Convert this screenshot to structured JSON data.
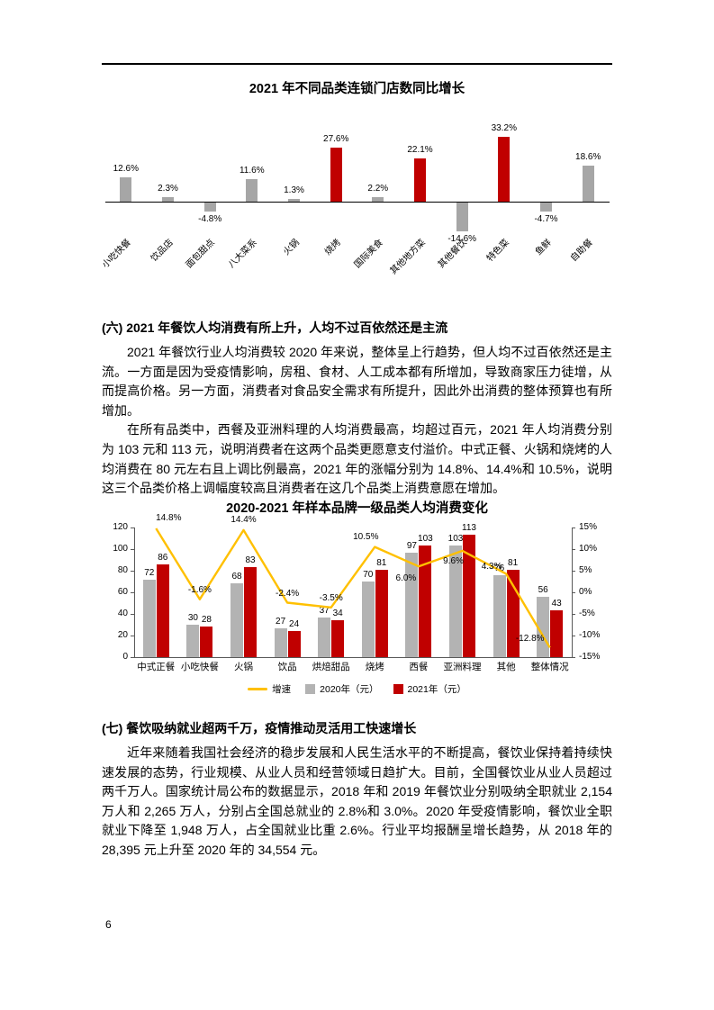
{
  "page": {
    "number": "6"
  },
  "sections": [
    {
      "heading": "(六) 2021 年餐饮人均消费有所上升，人均不过百依然还是主流",
      "paragraphs": [
        "2021 年餐饮行业人均消费较 2020 年来说，整体呈上行趋势，但人均不过百依然还是主流。一方面是因为受疫情影响，房租、食材、人工成本都有所增加，导致商家压力徒增，从而提高价格。另一方面，消费者对食品安全需求有所提升，因此外出消费的整体预算也有所增加。",
        "在所有品类中，西餐及亚洲料理的人均消费最高，均超过百元，2021 年人均消费分别为 103 元和 113 元，说明消费者在这两个品类更愿意支付溢价。中式正餐、火锅和烧烤的人均消费在 80 元左右且上调比例最高，2021 年的涨幅分别为 14.8%、14.4%和 10.5%，说明这三个品类价格上调幅度较高且消费者在这几个品类上消费意愿在增加。"
      ]
    },
    {
      "heading": "(七) 餐饮吸纳就业超两千万，疫情推动灵活用工快速增长",
      "paragraphs": [
        "近年来随着我国社会经济的稳步发展和人民生活水平的不断提高，餐饮业保持着持续快速发展的态势，行业规模、从业人员和经营领域日趋扩大。目前，全国餐饮业从业人员超过两千万人。国家统计局公布的数据显示，2018 年和 2019 年餐饮业分别吸纳全职就业 2,154 万人和 2,265 万人，分别占全国总就业的 2.8%和 3.0%。2020 年受疫情影响，餐饮业全职就业下降至 1,948 万人，占全国就业比重 2.6%。行业平均报酬呈增长趋势，从 2018 年的 28,395 元上升至 2020 年的 34,554 元。"
      ]
    }
  ],
  "chart_data": [
    {
      "type": "bar",
      "title": "2021 年不同品类连锁门店数同比增长",
      "categories": [
        "小吃快餐",
        "饮品店",
        "面包甜点",
        "八大菜系",
        "火锅",
        "烧烤",
        "国际美食",
        "其他地方菜",
        "其他餐饮",
        "特色菜",
        "鱼鲜",
        "自助餐"
      ],
      "values": [
        12.6,
        2.3,
        -4.8,
        11.6,
        1.3,
        27.6,
        2.2,
        22.1,
        -14.6,
        33.2,
        -4.7,
        18.6
      ],
      "value_labels": [
        "12.6%",
        "2.3%",
        "-4.8%",
        "11.6%",
        "1.3%",
        "27.6%",
        "2.2%",
        "22.1%",
        "-14.6%",
        "33.2%",
        "-4.7%",
        "18.6%"
      ],
      "unit": "%",
      "bar_colors": [
        "#A6A6A6",
        "#A6A6A6",
        "#A6A6A6",
        "#A6A6A6",
        "#A6A6A6",
        "#C00000",
        "#A6A6A6",
        "#C00000",
        "#A6A6A6",
        "#C00000",
        "#A6A6A6",
        "#A6A6A6"
      ],
      "grid": false,
      "legend_position": "none"
    },
    {
      "type": "bar+line",
      "title": "2020-2021 年样本品牌一级品类人均消费变化",
      "categories": [
        "中式正餐",
        "小吃快餐",
        "火锅",
        "饮品",
        "烘焙甜品",
        "烧烤",
        "西餐",
        "亚洲料理",
        "其他",
        "整体情况"
      ],
      "series": [
        {
          "name": "2020年（元）",
          "type": "bar",
          "color": "#B3B3B3",
          "values": [
            72,
            30,
            68,
            27,
            37,
            70,
            97,
            103,
            76,
            56
          ]
        },
        {
          "name": "2021年（元）",
          "type": "bar",
          "color": "#C00000",
          "values": [
            86,
            28,
            83,
            24,
            34,
            81,
            103,
            113,
            81,
            43
          ]
        },
        {
          "name": "增速",
          "type": "line",
          "color": "#FFC000",
          "axis": "right",
          "values": [
            14.8,
            -1.6,
            14.4,
            -2.4,
            -3.5,
            10.5,
            6.0,
            9.6,
            4.3,
            -12.8
          ],
          "labels": [
            "14.8%",
            "-1.6%",
            "14.4%",
            "-2.4%",
            "-3.5%",
            "10.5%",
            "6.0%",
            "9.6%",
            "4.3%",
            "-12.8%"
          ]
        }
      ],
      "left_axis": {
        "min": 0,
        "max": 120,
        "ticks": [
          0,
          20,
          40,
          60,
          80,
          100,
          120
        ]
      },
      "right_axis": {
        "min": -15,
        "max": 15,
        "ticks_pct": [
          15,
          10,
          5,
          0,
          -5,
          -10,
          -15
        ]
      },
      "legend": [
        {
          "swatch": "line",
          "color": "#FFC000",
          "label": "增速"
        },
        {
          "swatch": "square",
          "color": "#B3B3B3",
          "label": "2020年（元）"
        },
        {
          "swatch": "square",
          "color": "#C00000",
          "label": "2021年（元）"
        }
      ],
      "legend_position": "bottom",
      "grid": false
    }
  ]
}
